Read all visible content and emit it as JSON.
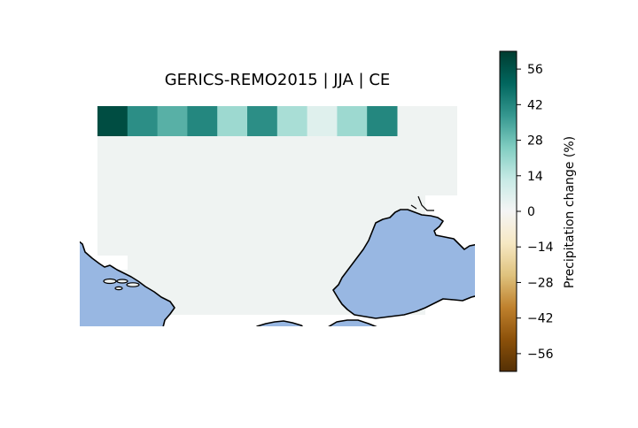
{
  "title": "GERICS-REMO2015 | JJA | CE",
  "colorbar": {
    "label": "Precipitation change (%)",
    "range": [
      -63,
      63
    ],
    "ticks": [
      56,
      42,
      28,
      14,
      0,
      -14,
      -28,
      -42,
      -56
    ],
    "tick_labels": [
      "56",
      "42",
      "28",
      "14",
      "0",
      "−14",
      "−28",
      "−42",
      "−56"
    ],
    "colormap": "BrBG",
    "stops": [
      "#543005",
      "#8c510a",
      "#bf812d",
      "#dfc27d",
      "#f6e8c3",
      "#f5f5f5",
      "#c7eae5",
      "#80cdc1",
      "#35978f",
      "#01665e",
      "#003c30"
    ]
  },
  "map": {
    "region": "CE",
    "ocean_color": "#98b7e2",
    "coastline_color": "#000000",
    "background_cell_color": "#eff3f2",
    "top_row_values": [
      58,
      40,
      32,
      42,
      20,
      40,
      18,
      6,
      20,
      42
    ]
  }
}
